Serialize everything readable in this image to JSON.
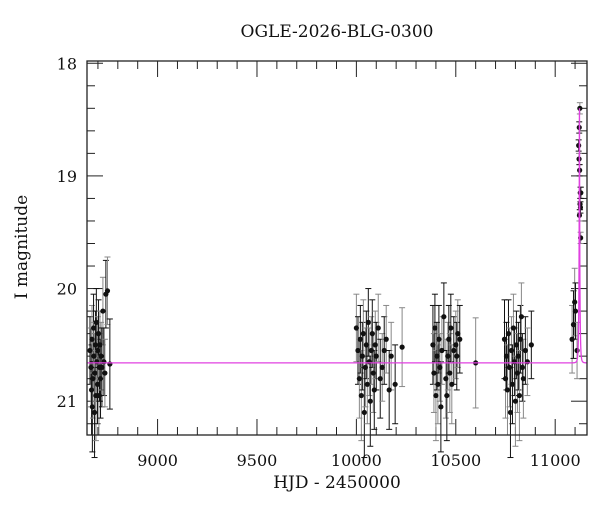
{
  "chart_data": {
    "type": "scatter",
    "title": "OGLE-2026-BLG-0300",
    "xlabel": "HJD - 2450000",
    "ylabel": "I magnitude",
    "xlim": [
      8645,
      11160
    ],
    "ylim": [
      21.3,
      17.98
    ],
    "y_inverted": true,
    "x_ticks": [
      9000,
      9500,
      10000,
      10500,
      11000
    ],
    "x_minor_step": 100,
    "y_ticks": [
      18,
      19,
      20,
      21
    ],
    "y_minor_step": 0.2,
    "grid": false,
    "legend": null,
    "colors": {
      "data": "#111111",
      "errorbar_dark": "#111111",
      "errorbar_light": "#888888",
      "model": "#e040e0",
      "frame": "#222222"
    },
    "series": [
      {
        "name": "OGLE data",
        "kind": "points_with_errorbars",
        "points": [
          [
            8660,
            20.55,
            0.3
          ],
          [
            8665,
            20.7,
            0.35
          ],
          [
            8668,
            20.9,
            0.4
          ],
          [
            8670,
            20.45,
            0.3
          ],
          [
            8672,
            21.05,
            0.4
          ],
          [
            8675,
            20.8,
            0.35
          ],
          [
            8678,
            20.35,
            0.3
          ],
          [
            8680,
            20.6,
            0.3
          ],
          [
            8683,
            21.1,
            0.4
          ],
          [
            8685,
            20.75,
            0.35
          ],
          [
            8688,
            20.5,
            0.3
          ],
          [
            8690,
            20.95,
            0.4
          ],
          [
            8692,
            20.3,
            0.3
          ],
          [
            8695,
            20.65,
            0.35
          ],
          [
            8698,
            20.85,
            0.35
          ],
          [
            8700,
            20.55,
            0.3
          ],
          [
            8703,
            20.4,
            0.3
          ],
          [
            8705,
            20.95,
            0.35
          ],
          [
            8708,
            20.7,
            0.3
          ],
          [
            8710,
            20.5,
            0.3
          ],
          [
            8713,
            20.8,
            0.35
          ],
          [
            8716,
            20.6,
            0.3
          ],
          [
            8720,
            20.7,
            0.35
          ],
          [
            8725,
            20.2,
            0.3
          ],
          [
            8730,
            20.65,
            0.3
          ],
          [
            8735,
            20.75,
            0.3
          ],
          [
            8740,
            20.05,
            0.3
          ],
          [
            8748,
            20.02,
            0.3
          ],
          [
            8760,
            20.67,
            0.4
          ],
          [
            10000,
            20.35,
            0.3
          ],
          [
            10008,
            20.55,
            0.3
          ],
          [
            10015,
            20.8,
            0.35
          ],
          [
            10020,
            20.45,
            0.3
          ],
          [
            10025,
            20.95,
            0.4
          ],
          [
            10030,
            20.6,
            0.3
          ],
          [
            10035,
            20.4,
            0.3
          ],
          [
            10040,
            21.1,
            0.4
          ],
          [
            10045,
            20.7,
            0.35
          ],
          [
            10050,
            20.5,
            0.3
          ],
          [
            10055,
            20.85,
            0.35
          ],
          [
            10060,
            20.3,
            0.3
          ],
          [
            10065,
            20.65,
            0.3
          ],
          [
            10070,
            21.0,
            0.4
          ],
          [
            10075,
            20.55,
            0.3
          ],
          [
            10080,
            20.4,
            0.3
          ],
          [
            10085,
            20.75,
            0.35
          ],
          [
            10090,
            20.9,
            0.35
          ],
          [
            10095,
            20.5,
            0.3
          ],
          [
            10100,
            20.6,
            0.3
          ],
          [
            10110,
            20.35,
            0.3
          ],
          [
            10120,
            20.8,
            0.35
          ],
          [
            10130,
            20.7,
            0.3
          ],
          [
            10140,
            20.55,
            0.3
          ],
          [
            10150,
            20.45,
            0.3
          ],
          [
            10165,
            20.9,
            0.35
          ],
          [
            10175,
            20.6,
            0.3
          ],
          [
            10195,
            20.85,
            0.35
          ],
          [
            10230,
            20.52,
            0.35
          ],
          [
            10385,
            20.5,
            0.35
          ],
          [
            10390,
            20.75,
            0.35
          ],
          [
            10395,
            20.35,
            0.3
          ],
          [
            10400,
            20.95,
            0.4
          ],
          [
            10405,
            20.6,
            0.3
          ],
          [
            10410,
            20.85,
            0.35
          ],
          [
            10415,
            20.45,
            0.3
          ],
          [
            10420,
            20.7,
            0.3
          ],
          [
            10425,
            21.05,
            0.4
          ],
          [
            10430,
            20.55,
            0.3
          ],
          [
            10440,
            20.25,
            0.3
          ],
          [
            10450,
            20.8,
            0.35
          ],
          [
            10455,
            20.95,
            0.4
          ],
          [
            10460,
            20.6,
            0.3
          ],
          [
            10465,
            20.45,
            0.3
          ],
          [
            10470,
            20.75,
            0.35
          ],
          [
            10475,
            20.35,
            0.3
          ],
          [
            10480,
            20.85,
            0.35
          ],
          [
            10490,
            20.55,
            0.3
          ],
          [
            10500,
            20.5,
            0.3
          ],
          [
            10505,
            20.6,
            0.3
          ],
          [
            10510,
            20.4,
            0.3
          ],
          [
            10520,
            20.45,
            0.3
          ],
          [
            10600,
            20.66,
            0.4
          ],
          [
            10745,
            20.45,
            0.35
          ],
          [
            10750,
            20.8,
            0.35
          ],
          [
            10755,
            20.6,
            0.3
          ],
          [
            10760,
            20.9,
            0.4
          ],
          [
            10765,
            20.4,
            0.3
          ],
          [
            10770,
            20.7,
            0.35
          ],
          [
            10775,
            21.1,
            0.4
          ],
          [
            10780,
            20.55,
            0.3
          ],
          [
            10785,
            20.85,
            0.35
          ],
          [
            10790,
            20.35,
            0.3
          ],
          [
            10795,
            20.65,
            0.3
          ],
          [
            10800,
            21.0,
            0.4
          ],
          [
            10805,
            20.5,
            0.3
          ],
          [
            10810,
            20.75,
            0.35
          ],
          [
            10815,
            20.6,
            0.3
          ],
          [
            10820,
            20.95,
            0.4
          ],
          [
            10825,
            20.45,
            0.3
          ],
          [
            10830,
            20.25,
            0.3
          ],
          [
            10835,
            20.7,
            0.3
          ],
          [
            10840,
            20.8,
            0.35
          ],
          [
            10850,
            20.55,
            0.3
          ],
          [
            10860,
            20.65,
            0.3
          ],
          [
            10880,
            20.5,
            0.3
          ],
          [
            11085,
            20.45,
            0.3
          ],
          [
            11092,
            20.32,
            0.3
          ],
          [
            11098,
            20.12,
            0.3
          ],
          [
            11102,
            20.2,
            0.25
          ],
          [
            11110,
            20.55,
            0.25
          ],
          [
            11118,
            18.73,
            0.05
          ],
          [
            11120,
            18.85,
            0.05
          ],
          [
            11121,
            18.57,
            0.05
          ],
          [
            11122,
            19.35,
            0.05
          ],
          [
            11123,
            18.95,
            0.05
          ],
          [
            11124,
            18.4,
            0.05
          ],
          [
            11125,
            19.25,
            0.05
          ],
          [
            11126,
            19.15,
            0.05
          ],
          [
            11127,
            19.28,
            0.05
          ],
          [
            11128,
            19.55,
            0.05
          ],
          [
            11129,
            19.15,
            0.05
          ]
        ]
      },
      {
        "name": "microlensing model",
        "kind": "line",
        "baseline_mag": 20.66,
        "t0": 11122,
        "peak_mag": 18.4,
        "tE": 4.5
      }
    ]
  }
}
